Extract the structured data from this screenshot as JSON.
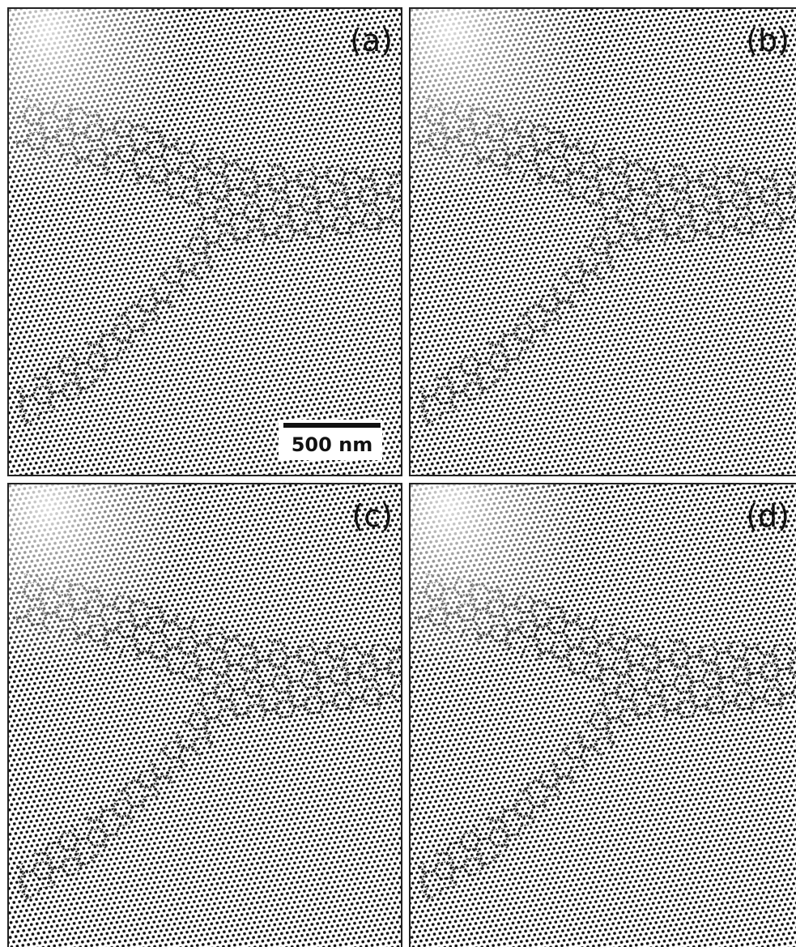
{
  "panels": [
    {
      "label": "(a)"
    },
    {
      "label": "(b)"
    },
    {
      "label": "(c)"
    },
    {
      "label": "(d)"
    }
  ],
  "scale_bar": {
    "label": "500 nm"
  }
}
